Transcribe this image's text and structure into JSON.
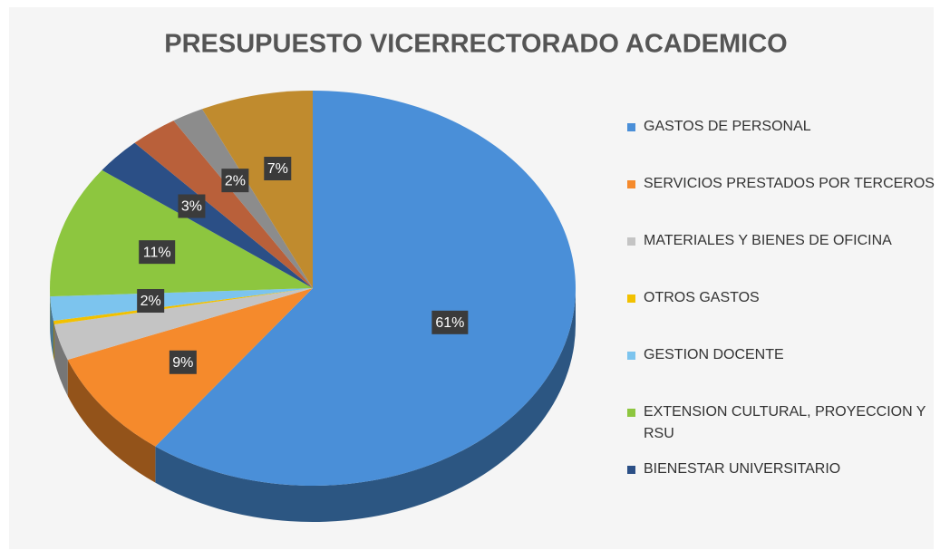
{
  "chart_data": {
    "type": "pie",
    "title": "PRESUPUESTO VICERRECTORADO ACADEMICO",
    "categories": [
      "GASTOS DE PERSONAL",
      "SERVICIOS PRESTADOS POR TERCEROS",
      "MATERIALES Y BIENES DE OFICINA",
      "OTROS GASTOS",
      "GESTION DOCENTE",
      "EXTENSION CULTURAL, PROYECCION Y RSU",
      "BIENESTAR UNIVERSITARIO",
      null,
      null,
      null
    ],
    "values": [
      61,
      9,
      3,
      0.3,
      2,
      11,
      3,
      3,
      2,
      7
    ],
    "value_labels": [
      "61%",
      "9%",
      null,
      null,
      "2%",
      "11%",
      "3%",
      null,
      "2%",
      "7%"
    ],
    "colors": [
      "#4a8fd8",
      "#f58a2c",
      "#c4c4c4",
      "#f2c100",
      "#7cc4ee",
      "#8dc63f",
      "#2b4f86",
      "#b9603a",
      "#8c8c8c",
      "#c08b2e"
    ],
    "legend": "right"
  }
}
